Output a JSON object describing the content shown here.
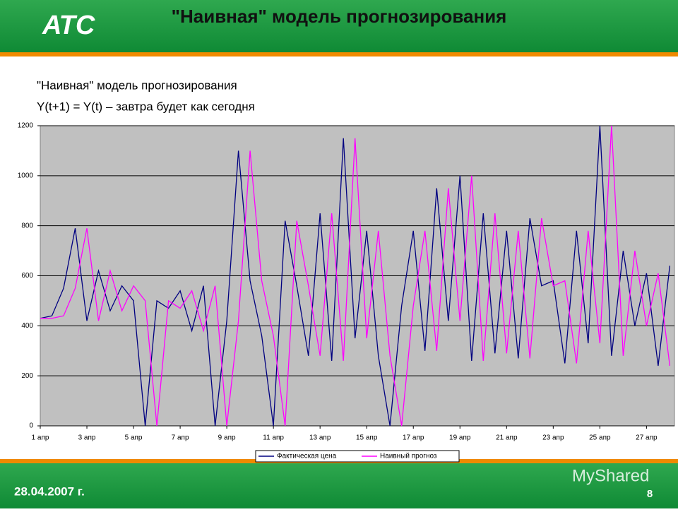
{
  "slide": {
    "logo": "АТС",
    "title": "\"Наивная\" модель прогнозирования",
    "lines": [
      "\"Наивная\" модель прогнозирования",
      "Y(t+1) = Y(t) – завтра будет как сегодня"
    ],
    "date": "28.04.2007 г.",
    "page": "8",
    "watermark": "MyShared"
  },
  "chart_data": {
    "type": "line",
    "x": [
      1,
      1.5,
      2,
      2.5,
      3,
      3.5,
      4,
      4.5,
      5,
      5.5,
      6,
      6.5,
      7,
      7.5,
      8,
      8.5,
      9,
      9.5,
      10,
      10.5,
      11,
      11.5,
      12,
      12.5,
      13,
      13.5,
      14,
      14.5,
      15,
      15.5,
      16,
      16.5,
      17,
      17.5,
      18,
      18.5,
      19,
      19.5,
      20,
      20.5,
      21,
      21.5,
      22,
      22.5,
      23,
      23.5,
      24,
      24.5,
      25,
      25.5,
      26,
      26.5,
      27,
      27.5,
      28
    ],
    "series": [
      {
        "name": "Фактическая цена",
        "color": "#000080",
        "values": [
          430,
          440,
          550,
          790,
          420,
          620,
          460,
          560,
          500,
          0,
          500,
          470,
          540,
          380,
          560,
          0,
          420,
          1100,
          580,
          360,
          0,
          820,
          560,
          280,
          850,
          260,
          1150,
          350,
          780,
          280,
          0,
          480,
          780,
          300,
          950,
          420,
          1000,
          260,
          850,
          290,
          780,
          270,
          830,
          560,
          580,
          250,
          780,
          330,
          1200,
          280,
          700,
          400,
          610,
          240,
          640
        ]
      },
      {
        "name": "Наивный прогноз",
        "color": "#ff00ff",
        "values": [
          430,
          430,
          440,
          550,
          790,
          420,
          620,
          460,
          560,
          500,
          0,
          500,
          470,
          540,
          380,
          560,
          0,
          420,
          1100,
          580,
          360,
          0,
          820,
          560,
          280,
          850,
          260,
          1150,
          350,
          780,
          280,
          0,
          480,
          780,
          300,
          950,
          420,
          1000,
          260,
          850,
          290,
          780,
          270,
          830,
          560,
          580,
          250,
          780,
          330,
          1200,
          280,
          700,
          400,
          610,
          240
        ]
      }
    ],
    "xlim": [
      1,
      28.2
    ],
    "xticks": [
      {
        "value": 1,
        "label": "1 апр"
      },
      {
        "value": 3,
        "label": "3 апр"
      },
      {
        "value": 5,
        "label": "5 апр"
      },
      {
        "value": 7,
        "label": "7 апр"
      },
      {
        "value": 9,
        "label": "9 апр"
      },
      {
        "value": 11,
        "label": "11 апр"
      },
      {
        "value": 13,
        "label": "13 апр"
      },
      {
        "value": 15,
        "label": "15 апр"
      },
      {
        "value": 17,
        "label": "17 апр"
      },
      {
        "value": 19,
        "label": "19 апр"
      },
      {
        "value": 21,
        "label": "21 апр"
      },
      {
        "value": 23,
        "label": "23 апр"
      },
      {
        "value": 25,
        "label": "25 апр"
      },
      {
        "value": 27,
        "label": "27 апр"
      }
    ],
    "ylim": [
      0,
      1200
    ],
    "yticks": [
      0,
      200,
      400,
      600,
      800,
      1000,
      1200
    ],
    "grid": true
  }
}
